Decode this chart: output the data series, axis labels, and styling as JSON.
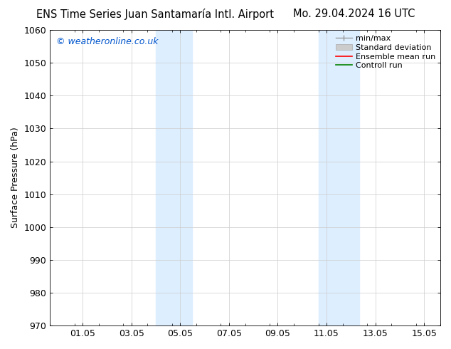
{
  "title_left": "ENS Time Series Juan Santamaría Intl. Airport",
  "title_right": "Mo. 29.04.2024 16 UTC",
  "ylabel": "Surface Pressure (hPa)",
  "watermark": "© weatheronline.co.uk",
  "watermark_color": "#0055cc",
  "ylim": [
    970,
    1060
  ],
  "yticks": [
    970,
    980,
    990,
    1000,
    1010,
    1020,
    1030,
    1040,
    1050,
    1060
  ],
  "xtick_labels": [
    "01.05",
    "03.05",
    "05.05",
    "07.05",
    "09.05",
    "11.05",
    "13.05",
    "15.05"
  ],
  "xtick_positions": [
    1.333,
    3.333,
    5.333,
    7.333,
    9.333,
    11.333,
    13.333,
    15.333
  ],
  "xlim_min": 0.0,
  "xlim_max": 16.0,
  "shaded_bands": [
    {
      "x_start": 4.333,
      "x_end": 5.833,
      "color": "#ddeeff"
    },
    {
      "x_start": 11.0,
      "x_end": 12.667,
      "color": "#ddeeff"
    }
  ],
  "legend_items": [
    {
      "label": "min/max",
      "color": "#aaaaaa",
      "style": "minmax"
    },
    {
      "label": "Standard deviation",
      "color": "#cccccc",
      "style": "fill"
    },
    {
      "label": "Ensemble mean run",
      "color": "#ff0000",
      "style": "line"
    },
    {
      "label": "Controll run",
      "color": "#008000",
      "style": "line"
    }
  ],
  "background_color": "#ffffff",
  "grid_color": "#cccccc",
  "title_fontsize": 10.5,
  "ylabel_fontsize": 9,
  "tick_fontsize": 9,
  "legend_fontsize": 8
}
